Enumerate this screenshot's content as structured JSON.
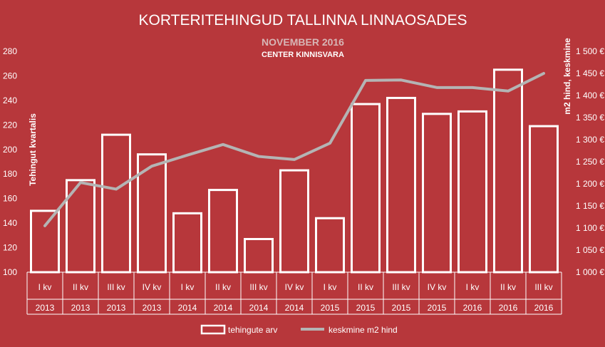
{
  "chart_data": {
    "type": "bar",
    "title": "KORTERITEHINGUD TALLINNA LINNAOSADES",
    "subtitle": "NOVEMBER 2016",
    "source": "CENTER KINNISVARA",
    "categories": [
      "I kv",
      "II kv",
      "III kv",
      "IV kv",
      "I kv",
      "II kv",
      "III kv",
      "IV kv",
      "I kv",
      "II kv",
      "III kv",
      "IV kv",
      "I kv",
      "II kv",
      "III kv"
    ],
    "years": [
      "2013",
      "2013",
      "2013",
      "2013",
      "2014",
      "2014",
      "2014",
      "2014",
      "2015",
      "2015",
      "2015",
      "2015",
      "2016",
      "2016",
      "2016"
    ],
    "series": [
      {
        "name": "tehingute arv",
        "type": "bar",
        "axis": "left",
        "values": [
          150,
          175,
          212,
          196,
          148,
          167,
          127,
          183,
          144,
          237,
          242,
          229,
          231,
          265,
          219
        ]
      },
      {
        "name": "keskmine m2 hind",
        "type": "line",
        "axis": "right",
        "values": [
          1105,
          1203,
          1188,
          1240,
          1265,
          1289,
          1262,
          1255,
          1292,
          1434,
          1435,
          1418,
          1418,
          1410,
          1450
        ]
      }
    ],
    "ylabel": "Tehingut kvartalis",
    "y2label": "m2 hind, keskmine",
    "ylim": [
      100,
      280
    ],
    "y2lim": [
      1000,
      1500
    ],
    "yticks": [
      "100",
      "120",
      "140",
      "160",
      "180",
      "200",
      "220",
      "240",
      "260",
      "280"
    ],
    "y2ticks": [
      "1 000 €",
      "1 050 €",
      "1 100 €",
      "1 150 €",
      "1 200 €",
      "1 250 €",
      "1 300 €",
      "1 350 €",
      "1 400 €",
      "1 450 €",
      "1 500 €"
    ],
    "grid": false,
    "legend_position": "bottom",
    "colors": {
      "background": "#b7373b",
      "bar_stroke": "#ffffff",
      "line": "#b4b4b4",
      "text": "#ffffff"
    }
  }
}
